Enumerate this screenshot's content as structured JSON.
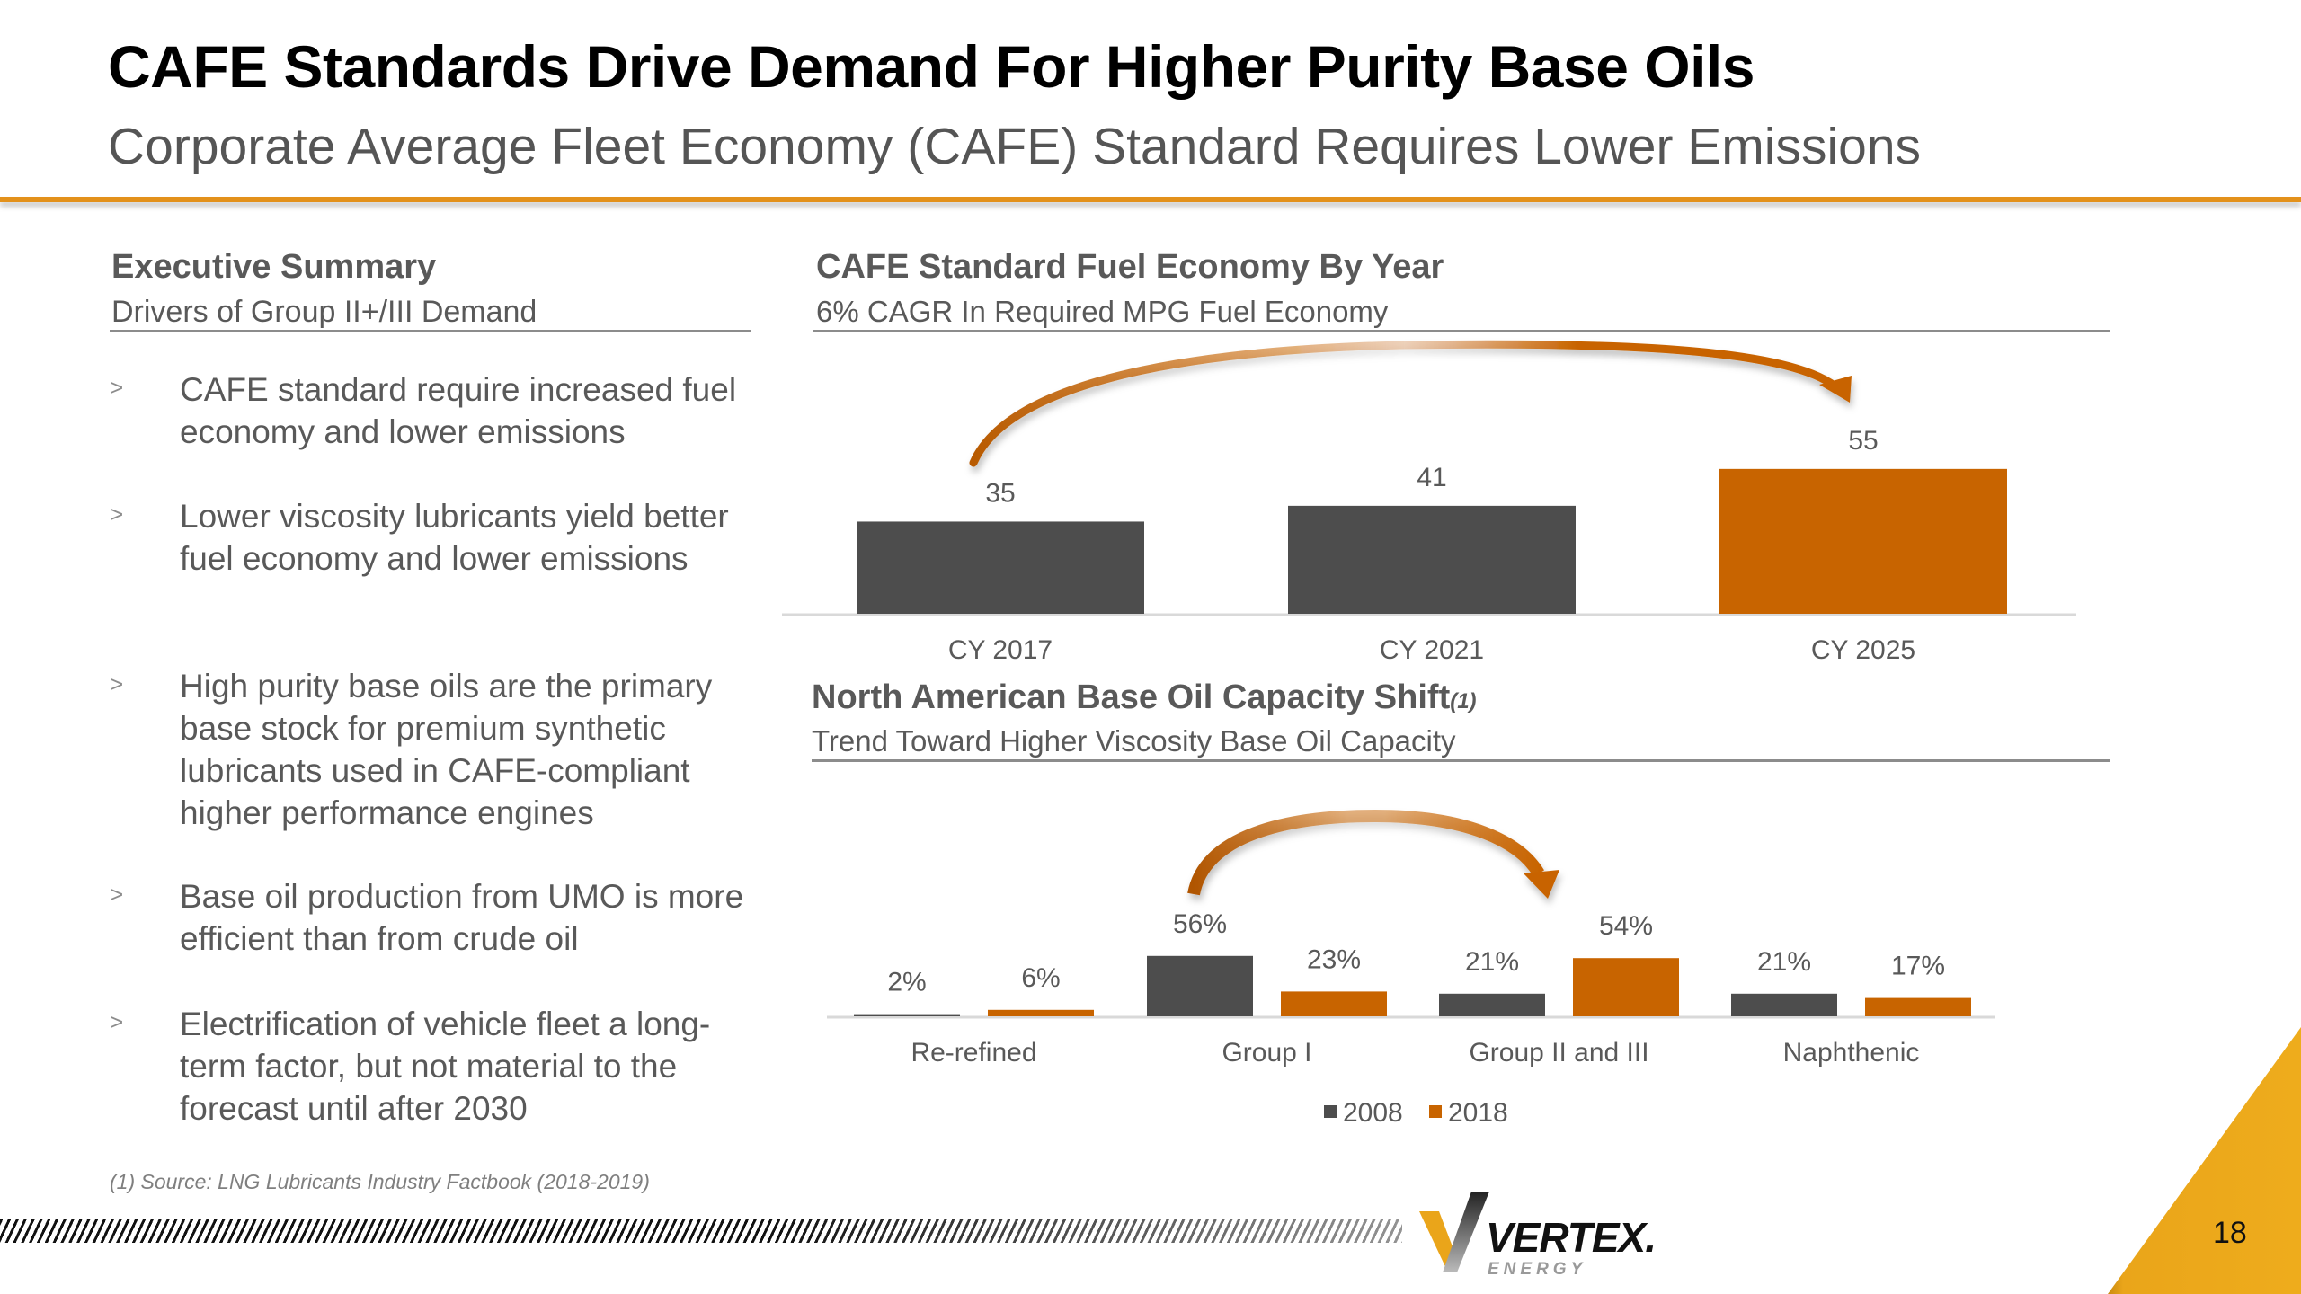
{
  "header": {
    "title": "CAFE Standards Drive Demand For Higher Purity Base Oils",
    "subtitle": "Corporate Average Fleet Economy (CAFE) Standard Requires Lower Emissions"
  },
  "summary": {
    "heading": "Executive Summary",
    "subheading": "Drivers of Group II+/III Demand",
    "bullet_icon": "chevron-right-icon",
    "bullets": [
      "CAFE standard require increased fuel economy and lower emissions",
      "Lower viscosity lubricants yield better fuel economy and lower emissions",
      "High purity base oils are the primary base stock for premium synthetic lubricants used in CAFE-compliant higher performance engines",
      "Base oil production from UMO is more efficient than from crude oil",
      "Electrification of vehicle fleet a long-term factor, but not material to the forecast until after 2030"
    ]
  },
  "colors": {
    "accent_orange": "#c86400",
    "bar_gray": "#4d4d4d",
    "rule_gold": "#e3911b",
    "corner_gold": "#eaa51a",
    "text_gray": "#595959"
  },
  "chart_data": [
    {
      "type": "bar",
      "title": "CAFE Standard Fuel Economy By Year",
      "subtitle": "6% CAGR In Required MPG Fuel Economy",
      "categories": [
        "CY 2017",
        "CY 2021",
        "CY 2025"
      ],
      "values": [
        35,
        41,
        55
      ],
      "data_labels": [
        "35",
        "41",
        "55"
      ],
      "highlight_index": 2,
      "xlabel": "",
      "ylabel": "",
      "ylim": [
        0,
        60
      ],
      "grid": false,
      "annotation": "curved arrow from CY 2017 to CY 2025"
    },
    {
      "type": "bar",
      "title": "North American Base Oil Capacity Shift",
      "title_footnote_marker": "(1)",
      "subtitle": "Trend Toward Higher Viscosity Base Oil Capacity",
      "categories": [
        "Re-refined",
        "Group I",
        "Group II and III",
        "Naphthenic"
      ],
      "series": [
        {
          "name": "2008",
          "values": [
            2,
            56,
            21,
            21
          ],
          "labels": [
            "2%",
            "56%",
            "21%",
            "21%"
          ]
        },
        {
          "name": "2018",
          "values": [
            6,
            23,
            54,
            17
          ],
          "labels": [
            "6%",
            "23%",
            "54%",
            "17%"
          ]
        }
      ],
      "unit": "%",
      "ylim": [
        0,
        60
      ],
      "grid": false,
      "legend": "bottom-center",
      "annotation": "curved arrow from Group I 2008 to Group II and III 2018"
    }
  ],
  "footnote": "(1) Source:  LNG Lubricants Industry Factbook (2018-2019)",
  "footer": {
    "logo_text": "VERTEX.",
    "logo_subtext": "ENERGY",
    "page_number": "18"
  }
}
